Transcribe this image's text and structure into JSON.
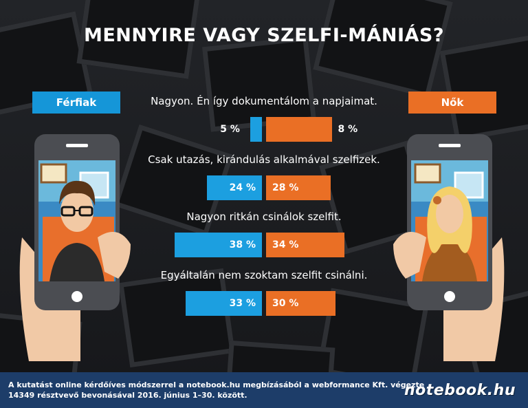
{
  "title": "MENNYIRE VAGY SZELFI-MÁNIÁS?",
  "legend": {
    "men": "Férfiak",
    "women": "Nők"
  },
  "colors": {
    "men": "#1c9fe0",
    "women": "#ea6f25",
    "footer": "#1d3d69"
  },
  "chart_data": {
    "type": "bar",
    "title": "MENNYIRE VAGY SZELFI-MÁNIÁS?",
    "orientation": "horizontal-diverging",
    "categories": [
      "Nagyon. Én így dokumentálom a napjaimat.",
      "Csak utazás, kirándulás alkalmával szelfizek.",
      "Nagyon ritkán csinálok szelfit.",
      "Egyáltalán nem szoktam szelfit csinálni."
    ],
    "series": [
      {
        "name": "Férfiak",
        "values": [
          5,
          24,
          38,
          33
        ],
        "labels": [
          "5 %",
          "24 %",
          "38 %",
          "33 %"
        ]
      },
      {
        "name": "Nők",
        "values": [
          8,
          28,
          34,
          30
        ],
        "labels": [
          "8 %",
          "28 %",
          "34 %",
          "30 %"
        ]
      }
    ],
    "unit": "%",
    "legend": "top"
  },
  "footer": {
    "line1": "A kutatást online kérdőíves módszerrel a notebook.hu megbízásából a webformance Kft. végezte",
    "line2": "14349 résztvevő bevonásával 2016. június 1–30. között."
  },
  "brand": "notebook.hu",
  "icons": {
    "men_illustration": "man-with-phone-icon",
    "women_illustration": "woman-with-phone-icon"
  }
}
